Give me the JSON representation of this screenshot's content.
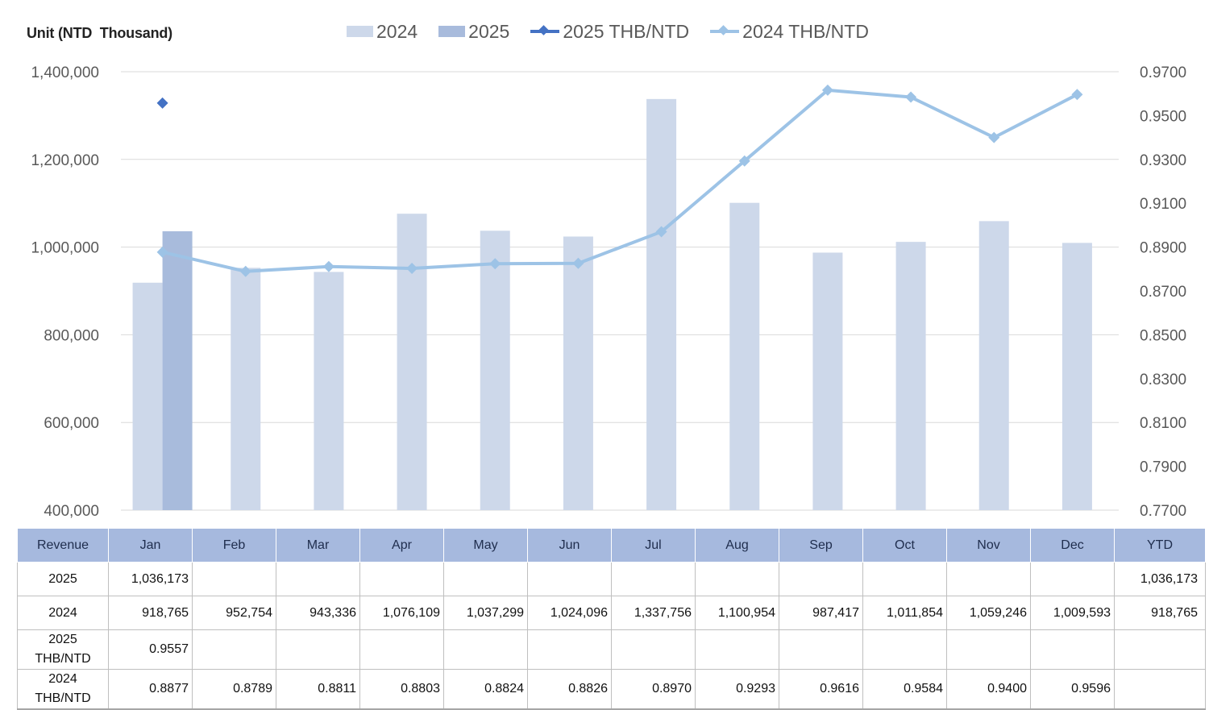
{
  "unit_label": "Unit (NTD  Thousand)",
  "colors": {
    "bar_2024": "#cdd8ea",
    "bar_2025": "#a8bbdc",
    "line_2025": "#4472c4",
    "line_2024": "#9dc3e6",
    "grid": "#d9d9d9",
    "table_header": "#a6b9de"
  },
  "chart_data": {
    "type": "bar",
    "categories": [
      "Jan",
      "Feb",
      "Mar",
      "Apr",
      "May",
      "Jun",
      "Jul",
      "Aug",
      "Sep",
      "Oct",
      "Nov",
      "Dec"
    ],
    "series": [
      {
        "name": "2024",
        "type": "bar",
        "axis": "left",
        "values": [
          918765,
          952754,
          943336,
          1076109,
          1037299,
          1024096,
          1337756,
          1100954,
          987417,
          1011854,
          1059246,
          1009593
        ]
      },
      {
        "name": "2025",
        "type": "bar",
        "axis": "left",
        "values": [
          1036173,
          null,
          null,
          null,
          null,
          null,
          null,
          null,
          null,
          null,
          null,
          null
        ]
      },
      {
        "name": "2025 THB/NTD",
        "type": "line",
        "axis": "right",
        "values": [
          0.9557,
          null,
          null,
          null,
          null,
          null,
          null,
          null,
          null,
          null,
          null,
          null
        ]
      },
      {
        "name": "2024 THB/NTD",
        "type": "line",
        "axis": "right",
        "values": [
          0.8877,
          0.8789,
          0.8811,
          0.8803,
          0.8824,
          0.8826,
          0.897,
          0.9293,
          0.9616,
          0.9584,
          0.94,
          0.9596
        ]
      }
    ],
    "y_left": {
      "range": [
        400000,
        1400000
      ],
      "ticks": [
        "1,400,000",
        "1,200,000",
        "1,000,000",
        "800,000",
        "600,000",
        "400,000"
      ]
    },
    "y_right": {
      "range": [
        0.77,
        0.97
      ],
      "ticks": [
        "0.9700",
        "0.9500",
        "0.9300",
        "0.9100",
        "0.8900",
        "0.8700",
        "0.8500",
        "0.8300",
        "0.8100",
        "0.7900",
        "0.7700"
      ]
    },
    "grid": true,
    "legend_position": "top"
  },
  "table": {
    "header": [
      "Revenue",
      "Jan",
      "Feb",
      "Mar",
      "Apr",
      "May",
      "Jun",
      "Jul",
      "Aug",
      "Sep",
      "Oct",
      "Nov",
      "Dec",
      "YTD"
    ],
    "rows": [
      {
        "label": "2025",
        "cells": [
          "1,036,173",
          "",
          "",
          "",
          "",
          "",
          "",
          "",
          "",
          "",
          "",
          ""
        ],
        "ytd": "1,036,173"
      },
      {
        "label": "2024",
        "cells": [
          "918,765",
          "952,754",
          "943,336",
          "1,076,109",
          "1,037,299",
          "1,024,096",
          "1,337,756",
          "1,100,954",
          "987,417",
          "1,011,854",
          "1,059,246",
          "1,009,593"
        ],
        "ytd": "918,765"
      },
      {
        "label": "2025\nTHB/NTD",
        "cells": [
          "0.9557",
          "",
          "",
          "",
          "",
          "",
          "",
          "",
          "",
          "",
          "",
          ""
        ],
        "ytd": ""
      },
      {
        "label": "2024\nTHB/NTD",
        "cells": [
          "0.8877",
          "0.8789",
          "0.8811",
          "0.8803",
          "0.8824",
          "0.8826",
          "0.8970",
          "0.9293",
          "0.9616",
          "0.9584",
          "0.9400",
          "0.9596"
        ],
        "ytd": ""
      }
    ]
  }
}
